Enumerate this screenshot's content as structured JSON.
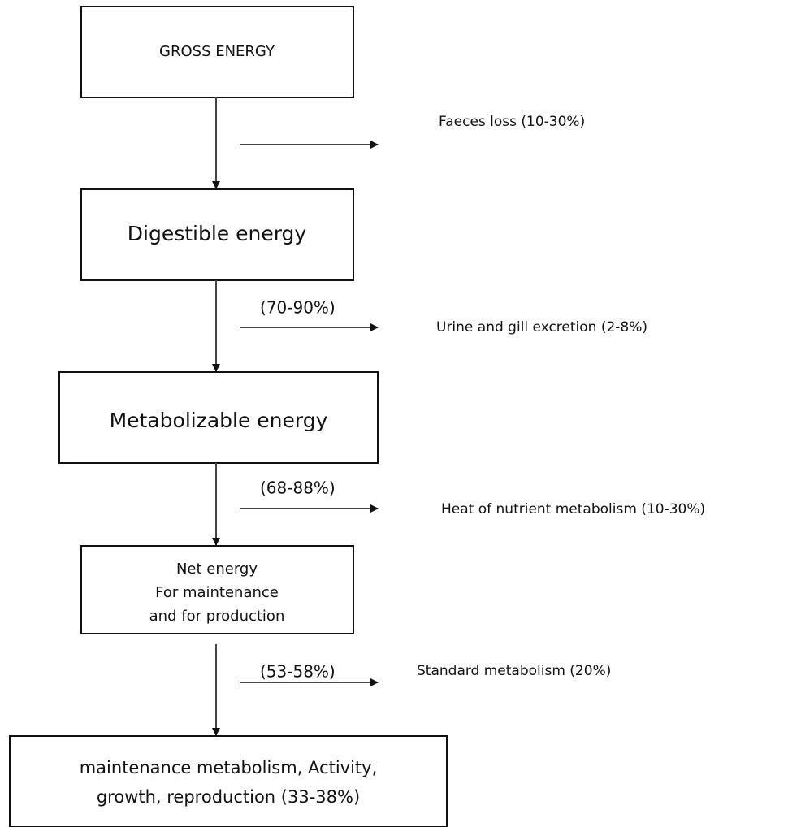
{
  "nodes": [
    {
      "lines": [
        "GROSS ENERGY"
      ]
    },
    {
      "lines": [
        "Digestible energy"
      ]
    },
    {
      "lines": [
        "Metabolizable energy"
      ]
    },
    {
      "lines": [
        "Net energy",
        "For maintenance",
        "and for production"
      ]
    },
    {
      "lines": [
        "maintenance metabolism, Activity,",
        "growth, reproduction  (33-38%)"
      ]
    }
  ],
  "losses": [
    {
      "label": "Faeces loss (10-30%)"
    },
    {
      "label": "Urine and  gill excretion  (2-8%)",
      "retained": "(70-90%)"
    },
    {
      "label": "Heat of nutrient metabolism (10-30%)",
      "retained": "(68-88%)"
    },
    {
      "label": "Standard metabolism   (20%)",
      "retained": "(53-58%)"
    }
  ]
}
